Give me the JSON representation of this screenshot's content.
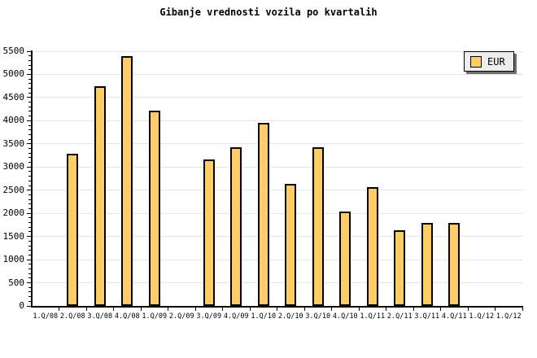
{
  "window": {
    "background": "#FFFFFF"
  },
  "chart_data": {
    "type": "bar",
    "title": "Gibanje vrednosti vozila po kvartalih",
    "xlabel": "",
    "ylabel": "",
    "categories": [
      "1.Q/08",
      "2.Q/08",
      "3.Q/08",
      "4.Q/08",
      "1.Q/09",
      "2.Q/09",
      "3.Q/09",
      "4.Q/09",
      "1.Q/10",
      "2.Q/10",
      "3.Q/10",
      "4.Q/10",
      "1.Q/11",
      "2.Q/11",
      "3.Q/11",
      "4.Q/11",
      "1.Q/12",
      "1.Q/12"
    ],
    "values": [
      null,
      3280,
      4750,
      5400,
      4220,
      null,
      3160,
      3430,
      3960,
      2640,
      3430,
      2040,
      2570,
      1640,
      1790,
      1800,
      null,
      null
    ],
    "series_name": "EUR",
    "ylim": [
      0,
      5500
    ],
    "ytick_step": 500,
    "yticks": [
      0,
      500,
      1000,
      1500,
      2000,
      2500,
      3000,
      3500,
      4000,
      4500,
      5000,
      5500
    ],
    "minor_tick_step": 100,
    "grid": "horizontal-only",
    "legend": {
      "label": "EUR",
      "position": "top-right"
    },
    "colors": {
      "bar_fill": "#FFCC66",
      "bar_border": "#000000",
      "grid": "#E5E5E5",
      "axis": "#000000",
      "legend_bg": "#EDEDED",
      "legend_shadow": "#6F6F6F",
      "background": "#FFFFFF"
    }
  }
}
